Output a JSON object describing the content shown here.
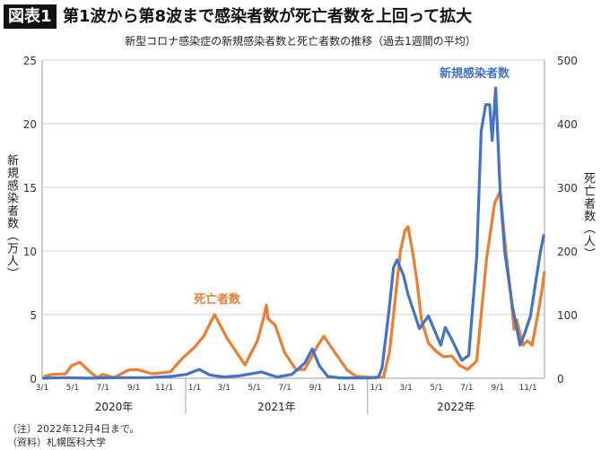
{
  "header": {
    "badge": "図表1",
    "title": "第1波から第8波まで感染者数が死亡者数を上回って拡大"
  },
  "notes": [
    "（注）2022年12月4日まで。",
    "（資料）札幌医科大学"
  ],
  "chart_data": {
    "type": "line",
    "title": "新型コロナ感染症の新規感染者数と死亡者数の推移（過去1週間の平均）",
    "ylabel_left": "新規感染者数（万人）",
    "ylabel_right": "死亡者数（人）",
    "ylim_left": [
      0,
      25
    ],
    "yticks_left": [
      0,
      5,
      10,
      15,
      20,
      25
    ],
    "ylim_right": [
      0,
      500
    ],
    "yticks_right": [
      0,
      100,
      200,
      300,
      400,
      500
    ],
    "xlim": [
      "2020-03-01",
      "2022-12-04"
    ],
    "xticks": [
      {
        "date": "2020-03-01",
        "label": "3/1"
      },
      {
        "date": "2020-05-01",
        "label": "5/1"
      },
      {
        "date": "2020-07-01",
        "label": "7/1"
      },
      {
        "date": "2020-09-01",
        "label": "9/1"
      },
      {
        "date": "2020-11-01",
        "label": "11/1"
      },
      {
        "date": "2021-01-01",
        "label": "1/1"
      },
      {
        "date": "2021-03-01",
        "label": "3/1"
      },
      {
        "date": "2021-05-01",
        "label": "5/1"
      },
      {
        "date": "2021-07-01",
        "label": "7/1"
      },
      {
        "date": "2021-09-01",
        "label": "9/1"
      },
      {
        "date": "2021-11-01",
        "label": "11/1"
      },
      {
        "date": "2022-01-01",
        "label": "1/1"
      },
      {
        "date": "2022-03-01",
        "label": "3/1"
      },
      {
        "date": "2022-05-01",
        "label": "5/1"
      },
      {
        "date": "2022-07-01",
        "label": "7/1"
      },
      {
        "date": "2022-09-01",
        "label": "9/1"
      },
      {
        "date": "2022-11-01",
        "label": "11/1"
      }
    ],
    "years": [
      "2020年",
      "2021年",
      "2022年"
    ],
    "grid": true,
    "series": [
      {
        "name": "新規感染者数",
        "axis": "left",
        "color": "#4472C4",
        "points": [
          [
            "2020-03-01",
            0.01
          ],
          [
            "2020-04-15",
            0.05
          ],
          [
            "2020-06-01",
            0.01
          ],
          [
            "2020-08-01",
            0.05
          ],
          [
            "2020-10-01",
            0.05
          ],
          [
            "2020-11-15",
            0.15
          ],
          [
            "2020-12-15",
            0.3
          ],
          [
            "2021-01-10",
            0.7
          ],
          [
            "2021-02-01",
            0.25
          ],
          [
            "2021-03-01",
            0.1
          ],
          [
            "2021-04-01",
            0.2
          ],
          [
            "2021-05-15",
            0.5
          ],
          [
            "2021-06-15",
            0.1
          ],
          [
            "2021-07-15",
            0.3
          ],
          [
            "2021-08-10",
            1.2
          ],
          [
            "2021-08-25",
            2.3
          ],
          [
            "2021-09-08",
            1.0
          ],
          [
            "2021-09-25",
            0.15
          ],
          [
            "2021-10-20",
            0.03
          ],
          [
            "2021-12-20",
            0.02
          ],
          [
            "2022-01-05",
            0.1
          ],
          [
            "2022-01-12",
            0.8
          ],
          [
            "2022-01-25",
            5.0
          ],
          [
            "2022-02-04",
            8.7
          ],
          [
            "2022-02-11",
            9.3
          ],
          [
            "2022-02-24",
            8.1
          ],
          [
            "2022-03-05",
            6.6
          ],
          [
            "2022-03-28",
            3.9
          ],
          [
            "2022-04-15",
            4.9
          ],
          [
            "2022-05-10",
            2.6
          ],
          [
            "2022-05-19",
            4.0
          ],
          [
            "2022-05-30",
            3.2
          ],
          [
            "2022-06-21",
            1.4
          ],
          [
            "2022-07-05",
            1.8
          ],
          [
            "2022-07-21",
            9.5
          ],
          [
            "2022-07-30",
            19.4
          ],
          [
            "2022-08-08",
            21.5
          ],
          [
            "2022-08-16",
            21.5
          ],
          [
            "2022-08-21",
            18.7
          ],
          [
            "2022-08-28",
            22.8
          ],
          [
            "2022-09-06",
            14.7
          ],
          [
            "2022-09-15",
            10.0
          ],
          [
            "2022-10-01",
            5.6
          ],
          [
            "2022-10-16",
            2.6
          ],
          [
            "2022-10-25",
            3.5
          ],
          [
            "2022-11-06",
            4.9
          ],
          [
            "2022-11-15",
            7.2
          ],
          [
            "2022-11-26",
            10.0
          ],
          [
            "2022-12-03",
            11.3
          ]
        ]
      },
      {
        "name": "死亡者数",
        "axis": "right",
        "color": "#ED7D31",
        "points": [
          [
            "2020-03-05",
            3
          ],
          [
            "2020-03-21",
            6
          ],
          [
            "2020-04-17",
            7
          ],
          [
            "2020-04-29",
            20
          ],
          [
            "2020-05-16",
            25
          ],
          [
            "2020-06-01",
            13
          ],
          [
            "2020-06-19",
            1
          ],
          [
            "2020-07-01",
            6
          ],
          [
            "2020-07-23",
            1
          ],
          [
            "2020-08-21",
            13
          ],
          [
            "2020-09-06",
            14
          ],
          [
            "2020-10-08",
            7
          ],
          [
            "2020-11-13",
            10
          ],
          [
            "2020-12-07",
            31
          ],
          [
            "2021-01-01",
            49
          ],
          [
            "2021-01-19",
            66
          ],
          [
            "2021-02-10",
            100
          ],
          [
            "2021-03-07",
            63
          ],
          [
            "2021-04-12",
            21
          ],
          [
            "2021-05-07",
            59
          ],
          [
            "2021-05-19",
            94
          ],
          [
            "2021-05-25",
            115
          ],
          [
            "2021-05-28",
            94
          ],
          [
            "2021-06-12",
            83
          ],
          [
            "2021-06-30",
            41
          ],
          [
            "2021-07-23",
            14
          ],
          [
            "2021-08-10",
            14
          ],
          [
            "2021-09-03",
            49
          ],
          [
            "2021-09-17",
            66
          ],
          [
            "2021-10-09",
            41
          ],
          [
            "2021-11-03",
            13
          ],
          [
            "2021-11-21",
            3
          ],
          [
            "2021-12-31",
            1
          ],
          [
            "2022-01-15",
            2
          ],
          [
            "2022-01-27",
            41
          ],
          [
            "2022-02-18",
            200
          ],
          [
            "2022-02-27",
            232
          ],
          [
            "2022-03-05",
            238
          ],
          [
            "2022-03-14",
            200
          ],
          [
            "2022-03-23",
            153
          ],
          [
            "2022-04-01",
            92
          ],
          [
            "2022-04-15",
            55
          ],
          [
            "2022-05-01",
            42
          ],
          [
            "2022-05-15",
            34
          ],
          [
            "2022-06-01",
            35
          ],
          [
            "2022-06-17",
            20
          ],
          [
            "2022-07-03",
            14
          ],
          [
            "2022-07-21",
            27
          ],
          [
            "2022-08-10",
            190
          ],
          [
            "2022-08-26",
            275
          ],
          [
            "2022-09-06",
            294
          ],
          [
            "2022-09-15",
            218
          ],
          [
            "2022-09-28",
            125
          ],
          [
            "2022-10-04",
            77
          ],
          [
            "2022-10-09",
            92
          ],
          [
            "2022-10-22",
            52
          ],
          [
            "2022-10-31",
            59
          ],
          [
            "2022-11-09",
            52
          ],
          [
            "2022-11-20",
            97
          ],
          [
            "2022-11-29",
            139
          ],
          [
            "2022-12-04",
            168
          ]
        ]
      }
    ]
  }
}
